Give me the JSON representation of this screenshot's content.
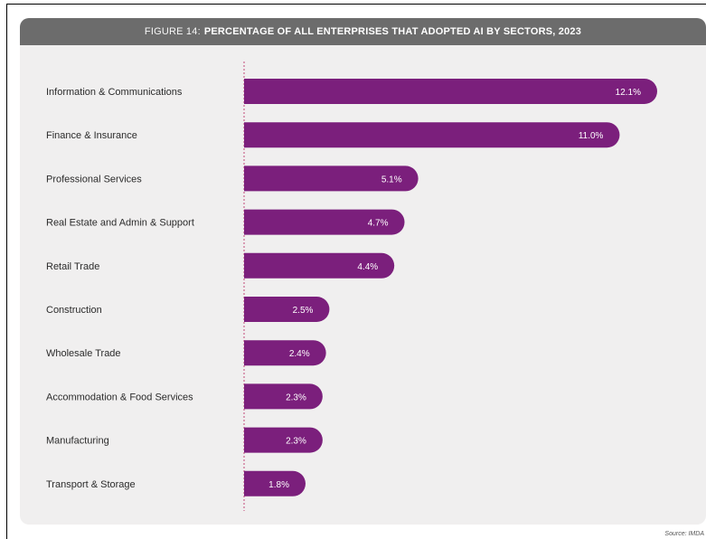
{
  "figure": {
    "prefix": "FIGURE 14:",
    "title": "PERCENTAGE OF ALL ENTERPRISES THAT ADOPTED AI BY SECTORS, 2023"
  },
  "source": "Source: IMDA",
  "colors": {
    "bar": "#7b1f7c",
    "header": "#6c6c6c",
    "panel": "#f0efef",
    "axis": "#c24a7a"
  },
  "chart_data": {
    "type": "bar",
    "orientation": "horizontal",
    "title": "FIGURE 14: PERCENTAGE OF ALL ENTERPRISES THAT ADOPTED AI BY SECTORS, 2023",
    "categories": [
      "Information & Communications",
      "Finance & Insurance",
      "Professional Services",
      "Real Estate and Admin & Support",
      "Retail Trade",
      "Construction",
      "Wholesale Trade",
      "Accommodation & Food Services",
      "Manufacturing",
      "Transport & Storage"
    ],
    "values": [
      12.1,
      11.0,
      5.1,
      4.7,
      4.4,
      2.5,
      2.4,
      2.3,
      2.3,
      1.8
    ],
    "value_labels": [
      "12.1%",
      "11.0%",
      "5.1%",
      "4.7%",
      "4.4%",
      "2.5%",
      "2.4%",
      "2.3%",
      "2.3%",
      "1.8%"
    ],
    "xlim": [
      0,
      12.1
    ],
    "grid": false,
    "legend": "none"
  }
}
